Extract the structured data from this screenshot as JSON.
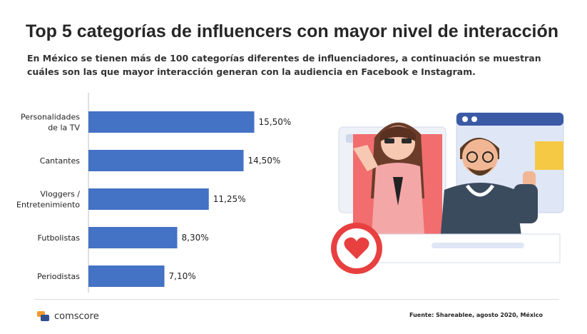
{
  "title": "Top 5 categorías de influencers con mayor nivel de interacción",
  "subtitle": "En México se tienen más de 100 categorías diferentes de influenciadores, a continuación se muestran cuáles son las que mayor interacción generan con la audiencia en Facebook e Instagram.",
  "chart_data": {
    "type": "bar",
    "orientation": "horizontal",
    "categories": [
      [
        "Personalidades",
        "de la TV"
      ],
      [
        "Cantantes"
      ],
      [
        "Vloggers /",
        "Entretenimiento"
      ],
      [
        "Futbolistas"
      ],
      [
        "Periodistas"
      ]
    ],
    "values": [
      15.5,
      14.5,
      11.25,
      8.3,
      7.1
    ],
    "data_labels": [
      "15,50%",
      "14,50%",
      "11,25%",
      "8,30%",
      "7,10%"
    ],
    "xlim": [
      0,
      20
    ],
    "bar_color": "#4472c4",
    "grid": false,
    "legend": "none"
  },
  "brand": {
    "name": "comscore",
    "icon": "comscore-logo-icon"
  },
  "source": "Fuente: Shareablee, agosto 2020, México",
  "illustration": {
    "icon": "influencers-illustration-icon",
    "accent": "#f05a5a"
  }
}
